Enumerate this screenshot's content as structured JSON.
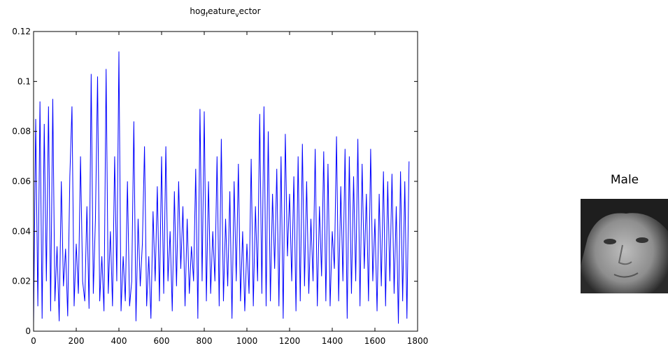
{
  "chart_data": {
    "type": "line",
    "title": [
      "hog",
      "f",
      "eature",
      "v",
      "ector"
    ],
    "x": [
      0,
      10,
      20,
      30,
      40,
      50,
      60,
      70,
      80,
      90,
      100,
      110,
      120,
      130,
      140,
      150,
      160,
      170,
      180,
      190,
      200,
      210,
      220,
      230,
      240,
      250,
      260,
      270,
      280,
      290,
      300,
      310,
      320,
      330,
      340,
      350,
      360,
      370,
      380,
      390,
      400,
      410,
      420,
      430,
      440,
      450,
      460,
      470,
      480,
      490,
      500,
      510,
      520,
      530,
      540,
      550,
      560,
      570,
      580,
      590,
      600,
      610,
      620,
      630,
      640,
      650,
      660,
      670,
      680,
      690,
      700,
      710,
      720,
      730,
      740,
      750,
      760,
      770,
      780,
      790,
      800,
      810,
      820,
      830,
      840,
      850,
      860,
      870,
      880,
      890,
      900,
      910,
      920,
      930,
      940,
      950,
      960,
      970,
      980,
      990,
      1000,
      1010,
      1020,
      1030,
      1040,
      1050,
      1060,
      1070,
      1080,
      1090,
      1100,
      1110,
      1120,
      1130,
      1140,
      1150,
      1160,
      1170,
      1180,
      1190,
      1200,
      1210,
      1220,
      1230,
      1240,
      1250,
      1260,
      1270,
      1280,
      1290,
      1300,
      1310,
      1320,
      1330,
      1340,
      1350,
      1360,
      1370,
      1380,
      1390,
      1400,
      1410,
      1420,
      1430,
      1440,
      1450,
      1460,
      1470,
      1480,
      1490,
      1500,
      1510,
      1520,
      1530,
      1540,
      1550,
      1560,
      1570,
      1580,
      1590,
      1600,
      1610,
      1620,
      1630,
      1640,
      1650,
      1660,
      1670,
      1680,
      1690,
      1700,
      1710,
      1720,
      1730,
      1740,
      1750,
      1760
    ],
    "series": [
      {
        "color": "#0000ff",
        "values": [
          0.003,
          0.085,
          0.01,
          0.092,
          0.005,
          0.083,
          0.02,
          0.09,
          0.008,
          0.093,
          0.012,
          0.034,
          0.004,
          0.06,
          0.018,
          0.033,
          0.006,
          0.062,
          0.09,
          0.01,
          0.035,
          0.015,
          0.07,
          0.02,
          0.012,
          0.05,
          0.009,
          0.103,
          0.015,
          0.045,
          0.102,
          0.012,
          0.03,
          0.008,
          0.105,
          0.015,
          0.04,
          0.01,
          0.07,
          0.02,
          0.112,
          0.008,
          0.03,
          0.012,
          0.06,
          0.01,
          0.02,
          0.084,
          0.004,
          0.045,
          0.018,
          0.035,
          0.074,
          0.01,
          0.03,
          0.005,
          0.048,
          0.02,
          0.058,
          0.012,
          0.07,
          0.015,
          0.074,
          0.02,
          0.04,
          0.008,
          0.056,
          0.018,
          0.06,
          0.025,
          0.05,
          0.01,
          0.045,
          0.015,
          0.034,
          0.02,
          0.065,
          0.005,
          0.089,
          0.02,
          0.088,
          0.012,
          0.06,
          0.015,
          0.04,
          0.02,
          0.07,
          0.01,
          0.077,
          0.012,
          0.045,
          0.018,
          0.056,
          0.005,
          0.06,
          0.02,
          0.067,
          0.012,
          0.04,
          0.008,
          0.035,
          0.015,
          0.069,
          0.01,
          0.05,
          0.02,
          0.087,
          0.015,
          0.09,
          0.01,
          0.08,
          0.012,
          0.055,
          0.025,
          0.065,
          0.01,
          0.07,
          0.005,
          0.079,
          0.03,
          0.055,
          0.02,
          0.062,
          0.008,
          0.07,
          0.012,
          0.075,
          0.018,
          0.06,
          0.015,
          0.045,
          0.02,
          0.073,
          0.01,
          0.05,
          0.022,
          0.072,
          0.012,
          0.067,
          0.01,
          0.04,
          0.025,
          0.078,
          0.012,
          0.058,
          0.02,
          0.073,
          0.005,
          0.07,
          0.015,
          0.062,
          0.02,
          0.077,
          0.01,
          0.067,
          0.025,
          0.055,
          0.012,
          0.073,
          0.02,
          0.045,
          0.008,
          0.055,
          0.018,
          0.064,
          0.01,
          0.06,
          0.02,
          0.063,
          0.015,
          0.05,
          0.003,
          0.064,
          0.012,
          0.06,
          0.005,
          0.068
        ]
      }
    ],
    "xlim": [
      0,
      1800
    ],
    "xticks": [
      0,
      200,
      400,
      600,
      800,
      1000,
      1200,
      1400,
      1600,
      1800
    ],
    "ylim": [
      0,
      0.12
    ],
    "yticks": [
      0,
      0.02,
      0.04,
      0.06,
      0.08,
      0.1,
      0.12
    ]
  },
  "prediction": "Male"
}
